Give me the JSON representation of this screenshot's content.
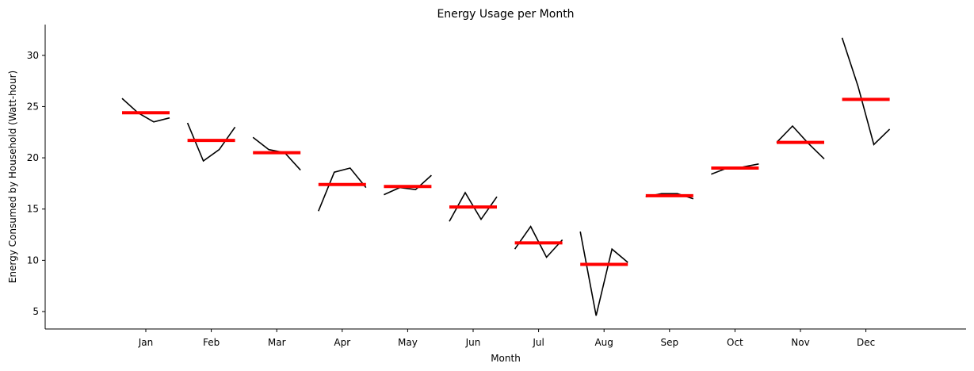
{
  "chart_data": {
    "type": "line",
    "title": "Energy Usage per Month",
    "xlabel": "Month",
    "ylabel": "Energy Consumed by Household (Watt-hour)",
    "categories": [
      "Jan",
      "Feb",
      "Mar",
      "Apr",
      "May",
      "Jun",
      "Jul",
      "Aug",
      "Sep",
      "Oct",
      "Nov",
      "Dec"
    ],
    "yticks": [
      5,
      10,
      15,
      20,
      25,
      30
    ],
    "ylim": [
      3.3,
      33
    ],
    "grid": false,
    "mean_color": "#ff0000",
    "line_color": "#000000",
    "subseries": [
      {
        "category": "Jan",
        "values": [
          25.8,
          24.4,
          23.5,
          23.9
        ],
        "mean": 24.4
      },
      {
        "category": "Feb",
        "values": [
          23.4,
          19.7,
          20.8,
          23.0
        ],
        "mean": 21.7
      },
      {
        "category": "Mar",
        "values": [
          22.0,
          20.8,
          20.5,
          18.8
        ],
        "mean": 20.5
      },
      {
        "category": "Apr",
        "values": [
          14.8,
          18.6,
          19.0,
          17.1
        ],
        "mean": 17.4
      },
      {
        "category": "May",
        "values": [
          16.4,
          17.1,
          16.9,
          18.3
        ],
        "mean": 17.2
      },
      {
        "category": "Jun",
        "values": [
          13.8,
          16.6,
          14.0,
          16.2
        ],
        "mean": 15.2
      },
      {
        "category": "Jul",
        "values": [
          11.1,
          13.3,
          10.3,
          12.0
        ],
        "mean": 11.7
      },
      {
        "category": "Aug",
        "values": [
          12.8,
          4.6,
          11.1,
          9.8
        ],
        "mean": 9.6
      },
      {
        "category": "Sep",
        "values": [
          16.2,
          16.5,
          16.5,
          16.0
        ],
        "mean": 16.3
      },
      {
        "category": "Oct",
        "values": [
          18.4,
          19.0,
          19.1,
          19.4
        ],
        "mean": 19.0
      },
      {
        "category": "Nov",
        "values": [
          21.5,
          23.1,
          21.4,
          19.9
        ],
        "mean": 21.5
      },
      {
        "category": "Dec",
        "values": [
          31.7,
          27.0,
          21.3,
          22.8
        ],
        "mean": 25.7
      }
    ]
  }
}
